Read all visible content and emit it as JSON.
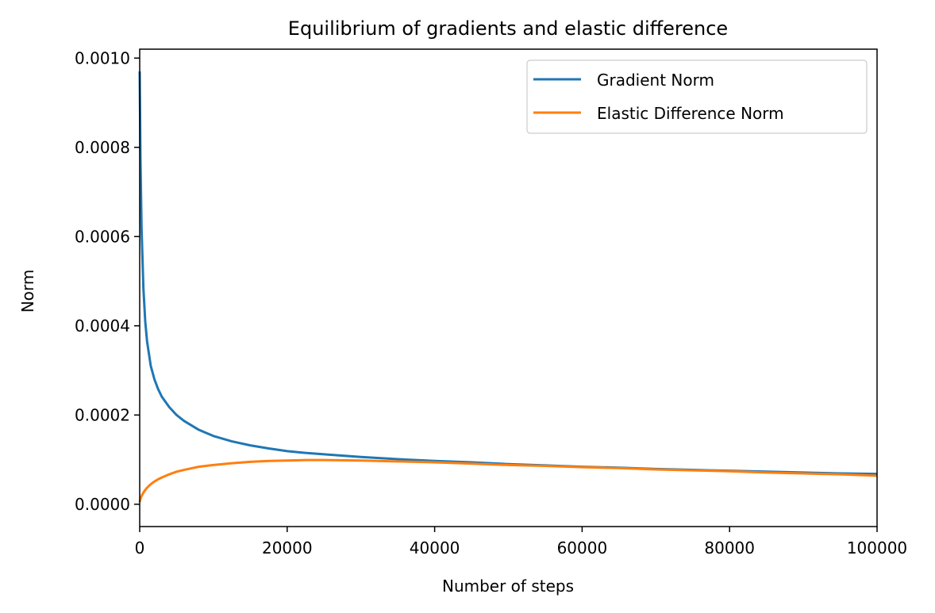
{
  "chart_data": {
    "type": "line",
    "title": "Equilibrium of gradients and elastic difference",
    "xlabel": "Number of steps",
    "ylabel": "Norm",
    "xlim": [
      0,
      100000
    ],
    "ylim": [
      -5e-05,
      0.00102
    ],
    "xticks": [
      0,
      20000,
      40000,
      60000,
      80000,
      100000
    ],
    "xtick_labels": [
      "0",
      "20000",
      "40000",
      "60000",
      "80000",
      "100000"
    ],
    "yticks": [
      0,
      0.0002,
      0.0004,
      0.0006,
      0.0008,
      0.001
    ],
    "ytick_labels": [
      "0.0000",
      "0.0002",
      "0.0004",
      "0.0006",
      "0.0008",
      "0.0010"
    ],
    "grid": false,
    "legend_position": "top-right",
    "x": [
      0,
      100,
      250,
      500,
      750,
      1000,
      1500,
      2000,
      2500,
      3000,
      4000,
      5000,
      6000,
      8000,
      10000,
      12500,
      15000,
      17500,
      20000,
      22500,
      25000,
      30000,
      35000,
      40000,
      45000,
      50000,
      55000,
      60000,
      65000,
      70000,
      75000,
      80000,
      85000,
      90000,
      95000,
      100000
    ],
    "series": [
      {
        "name": "Gradient Norm",
        "color": "#1f77b4",
        "values": [
          0.00097,
          0.00078,
          0.00062,
          0.000485,
          0.00041,
          0.000365,
          0.00031,
          0.00028,
          0.000258,
          0.000241,
          0.000218,
          0.0002,
          0.000187,
          0.000167,
          0.000153,
          0.000141,
          0.000132,
          0.000125,
          0.000119,
          0.000115,
          0.000112,
          0.000106,
          0.000101,
          9.7e-05,
          9.4e-05,
          9e-05,
          8.7e-05,
          8.4e-05,
          8.2e-05,
          7.9e-05,
          7.7e-05,
          7.5e-05,
          7.3e-05,
          7.1e-05,
          6.9e-05,
          6.8e-05
        ]
      },
      {
        "name": "Elastic Difference Norm",
        "color": "#ff7f0e",
        "values": [
          5e-06,
          1.2e-05,
          1.8e-05,
          2.6e-05,
          3.2e-05,
          3.7e-05,
          4.5e-05,
          5.1e-05,
          5.6e-05,
          6e-05,
          6.7e-05,
          7.3e-05,
          7.7e-05,
          8.4e-05,
          8.8e-05,
          9.2e-05,
          9.5e-05,
          9.7e-05,
          9.8e-05,
          9.9e-05,
          9.9e-05,
          9.8e-05,
          9.6e-05,
          9.4e-05,
          9.1e-05,
          8.8e-05,
          8.6e-05,
          8.3e-05,
          8.1e-05,
          7.8e-05,
          7.6e-05,
          7.4e-05,
          7.1e-05,
          6.9e-05,
          6.7e-05,
          6.4e-05
        ]
      }
    ]
  }
}
